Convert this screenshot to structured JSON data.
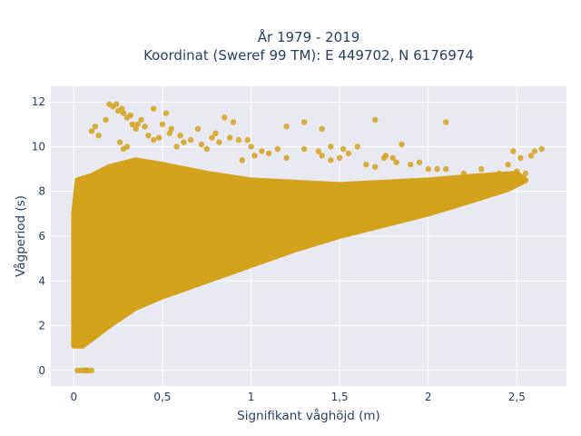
{
  "chart_data": {
    "type": "scatter",
    "title_lines": [
      "År 1979 - 2019",
      "Koordinat (Sweref 99 TM): E 449702, N 6176974"
    ],
    "xlabel": "Signifikant våghöjd (m)",
    "ylabel": "Vågperiod (s)",
    "xlim": [
      -0.13,
      2.78
    ],
    "ylim": [
      -0.7,
      12.7
    ],
    "x_ticks": [
      0,
      0.5,
      1,
      1.5,
      2,
      2.5
    ],
    "x_tick_labels": [
      "0",
      "0,5",
      "1",
      "1,5",
      "2",
      "2,5"
    ],
    "y_ticks": [
      0,
      2,
      4,
      6,
      8,
      10,
      12
    ],
    "y_tick_labels": [
      "0",
      "2",
      "4",
      "6",
      "8",
      "10",
      "12"
    ],
    "grid": true,
    "background": "#e9e9f1",
    "marker_color": "#d4a31e",
    "series": [
      {
        "points_note_x": [
          0.02,
          0.04,
          0.06,
          0.08,
          0.1,
          0.07
        ],
        "x": [
          0.02,
          0.04,
          0.06,
          0.08,
          0.1,
          0.07,
          0.2,
          0.22,
          0.25,
          0.28,
          0.3,
          0.33,
          0.35,
          0.18,
          0.24,
          0.27,
          0.32,
          0.38,
          0.45,
          0.5,
          0.55,
          0.52,
          0.48,
          0.54,
          0.6,
          0.62,
          0.58,
          0.66,
          0.72,
          0.75,
          0.78,
          0.82,
          0.88,
          0.93,
          0.98,
          1.0,
          1.02,
          1.06,
          1.1,
          1.15,
          1.2,
          1.3,
          1.4,
          1.45,
          1.5,
          1.55,
          1.6,
          1.65,
          1.7,
          1.75,
          1.8,
          1.85,
          1.9,
          1.95,
          2.0,
          2.05,
          2.1,
          2.2,
          2.3,
          2.35,
          2.4,
          2.45,
          2.5,
          2.55,
          2.6,
          2.64,
          2.1,
          1.7,
          1.4,
          1.3,
          1.2,
          0.9,
          0.85,
          0.8,
          0.7,
          0.45,
          0.42,
          0.4,
          0.36,
          0.3,
          0.28,
          0.26,
          0.95,
          0.1,
          0.12,
          0.14,
          1.38,
          1.45,
          1.52,
          1.76,
          1.82,
          2.48,
          2.52,
          2.58
        ],
        "y": [
          0,
          0,
          0,
          0,
          0,
          0,
          11.9,
          11.8,
          11.6,
          11.5,
          11.3,
          11.0,
          10.8,
          11.2,
          11.9,
          11.7,
          11.4,
          11.2,
          11.7,
          11.0,
          10.8,
          11.5,
          10.4,
          10.6,
          10.5,
          10.2,
          10.0,
          10.3,
          10.1,
          9.9,
          10.4,
          10.2,
          10.4,
          10.3,
          10.3,
          10.0,
          9.6,
          9.8,
          9.7,
          9.9,
          9.5,
          9.9,
          9.6,
          10.0,
          9.5,
          9.7,
          10.0,
          9.2,
          9.1,
          9.5,
          9.5,
          10.1,
          9.2,
          9.3,
          9.0,
          9.0,
          9.0,
          8.8,
          9.0,
          8.6,
          8.8,
          9.2,
          8.9,
          8.8,
          9.8,
          9.9,
          11.1,
          11.2,
          10.8,
          11.1,
          10.9,
          11.1,
          11.3,
          10.6,
          10.8,
          10.3,
          10.5,
          10.9,
          11.0,
          10.0,
          9.9,
          10.2,
          9.4,
          10.7,
          10.9,
          10.5,
          9.8,
          9.4,
          9.9,
          9.6,
          9.3,
          9.8,
          9.5,
          9.6
        ]
      }
    ]
  }
}
